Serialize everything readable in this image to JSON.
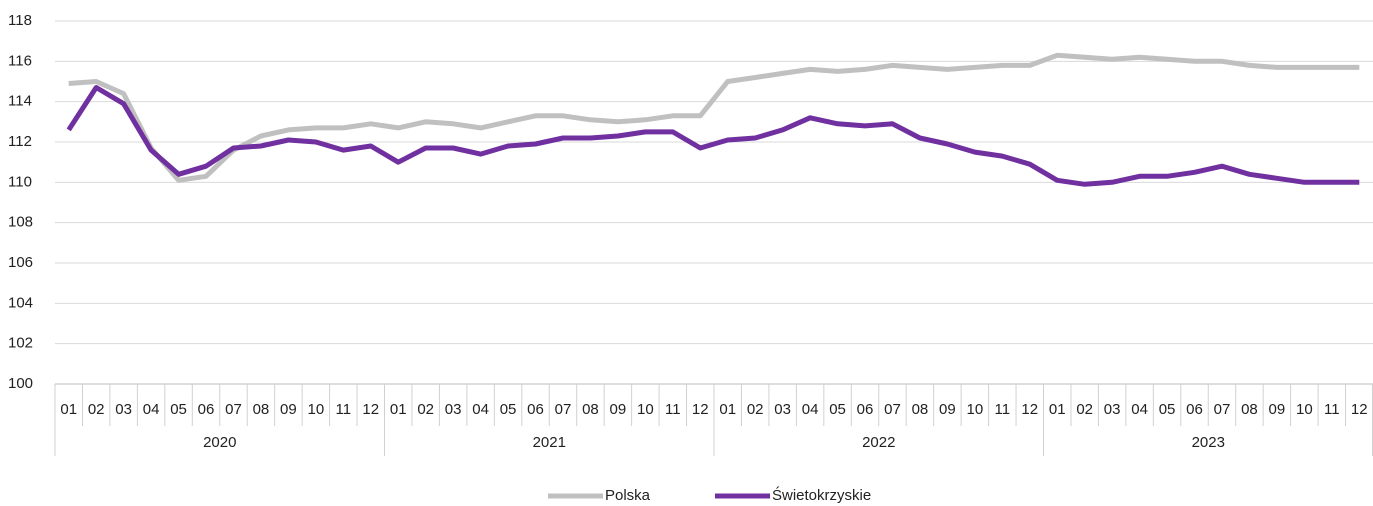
{
  "chart_data": {
    "type": "line",
    "categories": [
      "01",
      "02",
      "03",
      "04",
      "05",
      "06",
      "07",
      "08",
      "09",
      "10",
      "11",
      "12",
      "01",
      "02",
      "03",
      "04",
      "05",
      "06",
      "07",
      "08",
      "09",
      "10",
      "11",
      "12",
      "01",
      "02",
      "03",
      "04",
      "05",
      "06",
      "07",
      "08",
      "09",
      "10",
      "11",
      "12",
      "01",
      "02",
      "03",
      "04",
      "05",
      "06",
      "07",
      "08",
      "09",
      "10",
      "11",
      "12"
    ],
    "years": [
      "2020",
      "2021",
      "2022",
      "2023"
    ],
    "series": [
      {
        "name": "Polska",
        "color": "#c0c0c0",
        "values": [
          114.9,
          115.0,
          114.4,
          111.7,
          110.1,
          110.3,
          111.6,
          112.3,
          112.6,
          112.7,
          112.7,
          112.9,
          112.7,
          113.0,
          112.9,
          112.7,
          113.0,
          113.3,
          113.3,
          113.1,
          113.0,
          113.1,
          113.3,
          113.3,
          115.0,
          115.2,
          115.4,
          115.6,
          115.5,
          115.6,
          115.8,
          115.7,
          115.6,
          115.7,
          115.8,
          115.8,
          116.3,
          116.2,
          116.1,
          116.2,
          116.1,
          116.0,
          116.0,
          115.8,
          115.7,
          115.7,
          115.7,
          115.7
        ]
      },
      {
        "name": "Świetokrzyskie",
        "color": "#7030a0",
        "values": [
          112.6,
          114.7,
          113.9,
          111.6,
          110.4,
          110.8,
          111.7,
          111.8,
          112.1,
          112.0,
          111.6,
          111.8,
          111.0,
          111.7,
          111.7,
          111.4,
          111.8,
          111.9,
          112.2,
          112.2,
          112.3,
          112.5,
          112.5,
          111.7,
          112.1,
          112.2,
          112.6,
          113.2,
          112.9,
          112.8,
          112.9,
          112.2,
          111.9,
          111.5,
          111.3,
          110.9,
          110.1,
          109.9,
          110.0,
          110.3,
          110.3,
          110.5,
          110.8,
          110.4,
          110.2,
          110.0,
          110.0,
          110.0
        ]
      }
    ],
    "ylim": [
      100,
      118
    ],
    "yticks": [
      100,
      102,
      104,
      106,
      108,
      110,
      112,
      114,
      116,
      118
    ],
    "grid": true
  }
}
